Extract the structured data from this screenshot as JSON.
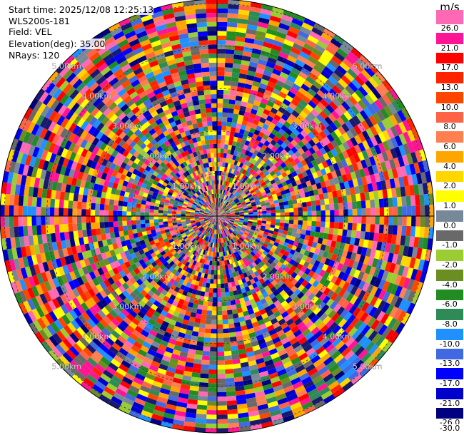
{
  "header": {
    "start_time": "Start time: 2025/12/08 12:25:13",
    "instrument": "WLS200s-181",
    "field": "Field: VEL",
    "elevation": "Elevation(deg): 35.00",
    "nrays": "NRays: 120"
  },
  "chart_data": {
    "type": "heatmap",
    "projection": "polar PPI",
    "field": "VEL",
    "units": "m/s",
    "elevation_deg": 35.0,
    "n_rays": 120,
    "range_rings_km": [
      1.0,
      2.0,
      3.0,
      4.0,
      5.0
    ],
    "ring_labels": [
      "1.00km",
      "2.00km",
      "3.00km",
      "4.00km",
      "5.00km"
    ],
    "max_range_km": 5.1,
    "grid": true,
    "colorbar": {
      "label": "m/s",
      "ticks": [
        "26.0",
        "21.0",
        "17.0",
        "13.0",
        "10.0",
        "8.0",
        "6.0",
        "4.0",
        "2.0",
        "1.0",
        "0.0",
        "-1.0",
        "-2.0",
        "-4.0",
        "-6.0",
        "-8.0",
        "-10.0",
        "-13.0",
        "-17.0",
        "-21.0",
        "-26.0",
        "-30.0"
      ],
      "colors": [
        "#ff69b4",
        "#ff1493",
        "#ff0000",
        "#ff2400",
        "#ff4500",
        "#ff6347",
        "#ff7f50",
        "#ffa500",
        "#ffd700",
        "#ffff00",
        "#778899",
        "#696969",
        "#9acd32",
        "#6b8e23",
        "#228b22",
        "#2e8b57",
        "#1e90ff",
        "#4169e1",
        "#0000ff",
        "#0000cd",
        "#000080",
        "#191970"
      ]
    }
  }
}
